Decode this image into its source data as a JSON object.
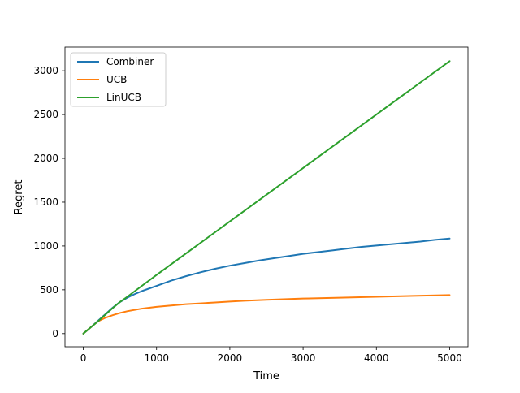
{
  "chart_data": {
    "type": "line",
    "title": "",
    "xlabel": "Time",
    "ylabel": "Regret",
    "xlim": [
      -250,
      5250
    ],
    "ylim": [
      -150,
      3270
    ],
    "xticks": [
      0,
      1000,
      2000,
      3000,
      4000,
      5000
    ],
    "yticks": [
      0,
      500,
      1000,
      1500,
      2000,
      2500,
      3000
    ],
    "grid": false,
    "legend_position": "top-left",
    "series": [
      {
        "name": "Combiner",
        "color": "#1f77b4",
        "x": [
          0,
          100,
          200,
          300,
          400,
          500,
          600,
          700,
          800,
          900,
          1000,
          1100,
          1200,
          1400,
          1600,
          1800,
          2000,
          2200,
          2400,
          2600,
          2800,
          3000,
          3200,
          3400,
          3600,
          3800,
          4000,
          4200,
          4400,
          4600,
          4800,
          5000
        ],
        "values": [
          0,
          70,
          145,
          220,
          295,
          360,
          410,
          450,
          485,
          515,
          545,
          575,
          605,
          655,
          700,
          740,
          775,
          805,
          835,
          860,
          885,
          910,
          930,
          950,
          970,
          990,
          1005,
          1020,
          1035,
          1050,
          1070,
          1085
        ]
      },
      {
        "name": "UCB",
        "color": "#ff7f0e",
        "x": [
          0,
          100,
          200,
          300,
          400,
          500,
          600,
          700,
          800,
          1000,
          1200,
          1400,
          1600,
          1800,
          2000,
          2200,
          2500,
          3000,
          3500,
          4000,
          4500,
          5000
        ],
        "values": [
          0,
          70,
          140,
          180,
          210,
          235,
          255,
          270,
          285,
          305,
          320,
          335,
          345,
          355,
          365,
          375,
          385,
          400,
          410,
          420,
          430,
          440
        ]
      },
      {
        "name": "LinUCB",
        "color": "#2ca02c",
        "x": [
          0,
          100,
          200,
          300,
          400,
          500,
          600,
          800,
          1000,
          2000,
          3000,
          4000,
          5000
        ],
        "values": [
          0,
          70,
          140,
          215,
          290,
          360,
          420,
          545,
          670,
          1280,
          1890,
          2500,
          3110
        ]
      }
    ]
  }
}
